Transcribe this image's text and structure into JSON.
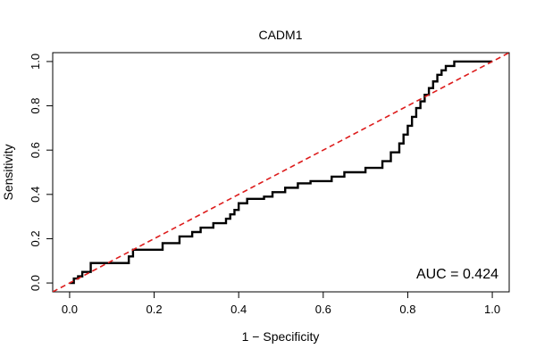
{
  "chart_data": {
    "type": "line",
    "title": "CADM1",
    "xlabel": "1 − Specificity",
    "ylabel": "Sensitivity",
    "xlim": [
      -0.04,
      1.04
    ],
    "ylim": [
      -0.04,
      1.04
    ],
    "x_ticks": [
      0.0,
      0.2,
      0.4,
      0.6,
      0.8,
      1.0
    ],
    "x_tick_labels": [
      "0.0",
      "0.2",
      "0.4",
      "0.6",
      "0.8",
      "1.0"
    ],
    "y_ticks": [
      0.0,
      0.2,
      0.4,
      0.6,
      0.8,
      1.0
    ],
    "y_tick_labels": [
      "0.0",
      "0.2",
      "0.4",
      "0.6",
      "0.8",
      "1.0"
    ],
    "grid": false,
    "annotation": "AUC = 0.424",
    "series": [
      {
        "style": "solid",
        "color": "#000000",
        "x": [
          0.0,
          0.01,
          0.01,
          0.02,
          0.02,
          0.03,
          0.03,
          0.05,
          0.05,
          0.08,
          0.08,
          0.14,
          0.14,
          0.15,
          0.15,
          0.22,
          0.22,
          0.26,
          0.26,
          0.29,
          0.29,
          0.31,
          0.31,
          0.34,
          0.34,
          0.37,
          0.37,
          0.38,
          0.38,
          0.39,
          0.39,
          0.4,
          0.4,
          0.42,
          0.42,
          0.46,
          0.46,
          0.48,
          0.48,
          0.51,
          0.51,
          0.54,
          0.54,
          0.57,
          0.57,
          0.62,
          0.62,
          0.65,
          0.65,
          0.7,
          0.7,
          0.74,
          0.74,
          0.76,
          0.76,
          0.78,
          0.78,
          0.79,
          0.79,
          0.8,
          0.8,
          0.81,
          0.81,
          0.82,
          0.82,
          0.83,
          0.83,
          0.84,
          0.84,
          0.85,
          0.85,
          0.86,
          0.86,
          0.87,
          0.87,
          0.88,
          0.88,
          0.89,
          0.89,
          0.91,
          0.91,
          0.93,
          0.93,
          1.0
        ],
        "y": [
          0.0,
          0.0,
          0.02,
          0.02,
          0.03,
          0.03,
          0.05,
          0.05,
          0.09,
          0.09,
          0.09,
          0.09,
          0.12,
          0.12,
          0.15,
          0.15,
          0.18,
          0.18,
          0.21,
          0.21,
          0.23,
          0.23,
          0.25,
          0.25,
          0.27,
          0.27,
          0.29,
          0.29,
          0.31,
          0.31,
          0.33,
          0.33,
          0.36,
          0.36,
          0.38,
          0.38,
          0.39,
          0.39,
          0.41,
          0.41,
          0.43,
          0.43,
          0.45,
          0.45,
          0.46,
          0.46,
          0.48,
          0.48,
          0.5,
          0.5,
          0.52,
          0.52,
          0.55,
          0.55,
          0.59,
          0.59,
          0.63,
          0.63,
          0.67,
          0.67,
          0.71,
          0.71,
          0.75,
          0.75,
          0.79,
          0.79,
          0.82,
          0.82,
          0.85,
          0.85,
          0.88,
          0.88,
          0.91,
          0.91,
          0.94,
          0.94,
          0.96,
          0.96,
          0.98,
          0.98,
          1.0,
          1.0,
          1.0,
          1.0
        ]
      },
      {
        "style": "dashed",
        "color": "#dd1c1c",
        "x": [
          -0.04,
          1.04
        ],
        "y": [
          -0.04,
          1.04
        ]
      }
    ]
  }
}
